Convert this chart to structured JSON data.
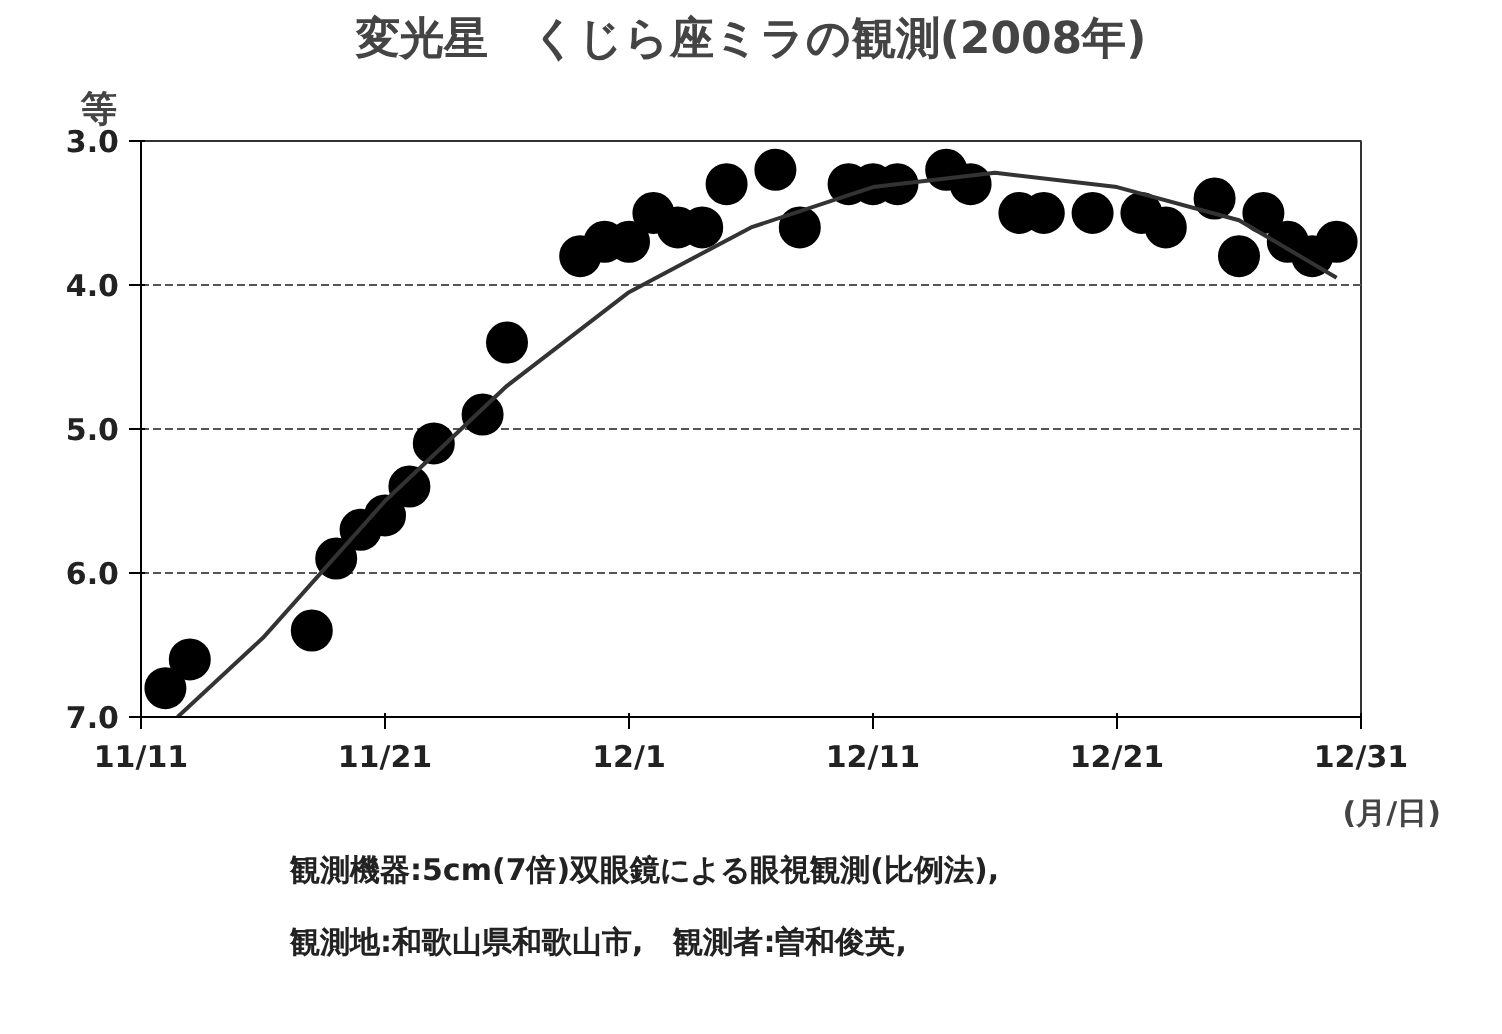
{
  "chart_data": {
    "type": "scatter",
    "title": "変光星　くじら座ミラの観測(2008年)",
    "ylabel": "等",
    "xlabel": "(月/日)",
    "annotations": [
      "観測機器:5cm(7倍)双眼鏡による眼視観測(比例法),",
      "観測地:和歌山県和歌山市,　観測者:曽和俊英,"
    ],
    "series": [
      {
        "color": "#000000",
        "marker": "circle",
        "x": [
          "2008-11-12",
          "2008-11-13",
          "2008-11-18",
          "2008-11-19",
          "2008-11-20",
          "2008-11-21",
          "2008-11-22",
          "2008-11-23",
          "2008-11-25",
          "2008-11-26",
          "2008-11-29",
          "2008-11-30",
          "2008-12-01",
          "2008-12-02",
          "2008-12-03",
          "2008-12-04",
          "2008-12-05",
          "2008-12-07",
          "2008-12-08",
          "2008-12-10",
          "2008-12-11",
          "2008-12-12",
          "2008-12-14",
          "2008-12-15",
          "2008-12-17",
          "2008-12-18",
          "2008-12-20",
          "2008-12-22",
          "2008-12-23",
          "2008-12-25",
          "2008-12-26",
          "2008-12-27",
          "2008-12-28",
          "2008-12-29",
          "2008-12-30"
        ],
        "values": [
          6.8,
          6.6,
          6.4,
          5.9,
          5.7,
          5.6,
          5.4,
          5.1,
          4.9,
          4.4,
          3.8,
          3.7,
          3.7,
          3.5,
          3.6,
          3.6,
          3.3,
          3.2,
          3.6,
          3.3,
          3.3,
          3.3,
          3.2,
          3.3,
          3.5,
          3.5,
          3.5,
          3.5,
          3.6,
          3.4,
          3.8,
          3.5,
          3.7,
          3.8,
          3.7
        ]
      },
      {
        "type": "line",
        "color": "#333333",
        "marker": "none",
        "line_style": "solid",
        "x": [
          "2008-11-12T12:00",
          "2008-11-16",
          "2008-11-21",
          "2008-11-26",
          "2008-12-01",
          "2008-12-06",
          "2008-12-11",
          "2008-12-16",
          "2008-12-21",
          "2008-12-26",
          "2008-12-30"
        ],
        "values": [
          7.0,
          6.45,
          5.5,
          4.7,
          4.05,
          3.6,
          3.32,
          3.22,
          3.32,
          3.55,
          3.95
        ]
      }
    ],
    "xlim": [
      "2008-11-11",
      "2008-12-31"
    ],
    "xticks": [
      {
        "value": "2008-11-11",
        "label": "11/11"
      },
      {
        "value": "2008-11-21",
        "label": "11/21"
      },
      {
        "value": "2008-12-01",
        "label": "12/1"
      },
      {
        "value": "2008-12-11",
        "label": "12/11"
      },
      {
        "value": "2008-12-21",
        "label": "12/21"
      },
      {
        "value": "2008-12-31",
        "label": "12/31"
      }
    ],
    "ylim": [
      7.0,
      3.0
    ],
    "yticks": [
      {
        "value": 3,
        "label": "3.0"
      },
      {
        "value": 4,
        "label": "4.0"
      },
      {
        "value": 5,
        "label": "5.0"
      },
      {
        "value": 6,
        "label": "6.0"
      },
      {
        "value": 7,
        "label": "7.0"
      }
    ],
    "grid": "y"
  }
}
